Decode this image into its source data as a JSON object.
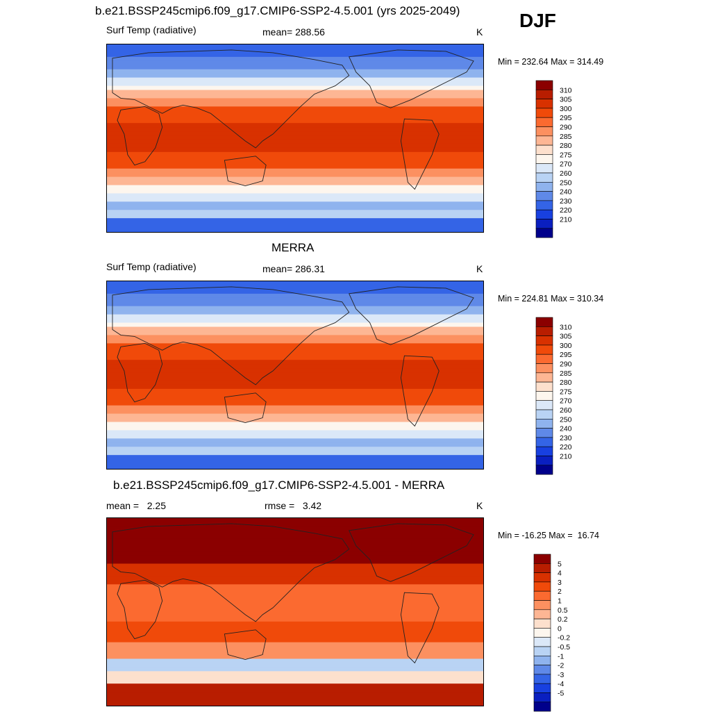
{
  "figure": {
    "season": "DJF"
  },
  "panels": [
    {
      "title": "b.e21.BSSP245cmip6.f09_g17.CMIP6-SSP2-4.5.001 (yrs 2025-2049)",
      "left_label": "Surf Temp (radiative)",
      "center_label": "mean= 288.56",
      "units": "K",
      "minmax": "Min = 232.64 Max = 314.49",
      "colorbar_labels": [
        "310",
        "305",
        "300",
        "295",
        "290",
        "285",
        "280",
        "275",
        "270",
        "260",
        "250",
        "240",
        "230",
        "220",
        "210"
      ],
      "colorbar_colors": [
        "#8b0000",
        "#b81d00",
        "#d83100",
        "#f04a0a",
        "#fb6a30",
        "#fc9060",
        "#fdb694",
        "#fde0cd",
        "#fdf6ee",
        "#dbe8f8",
        "#b9d3f4",
        "#8fb3ee",
        "#5f89e8",
        "#3464e6",
        "#1840e0",
        "#0a1fc0",
        "#00008b"
      ],
      "palette": "temperature"
    },
    {
      "title": "MERRA",
      "left_label": "Surf Temp (radiative)",
      "center_label": "mean= 286.31",
      "units": "K",
      "minmax": "Min = 224.81 Max = 310.34",
      "colorbar_labels": [
        "310",
        "305",
        "300",
        "295",
        "290",
        "285",
        "280",
        "275",
        "270",
        "260",
        "250",
        "240",
        "230",
        "220",
        "210"
      ],
      "colorbar_colors": [
        "#8b0000",
        "#b81d00",
        "#d83100",
        "#f04a0a",
        "#fb6a30",
        "#fc9060",
        "#fdb694",
        "#fde0cd",
        "#fdf6ee",
        "#dbe8f8",
        "#b9d3f4",
        "#8fb3ee",
        "#5f89e8",
        "#3464e6",
        "#1840e0",
        "#0a1fc0",
        "#00008b"
      ],
      "palette": "temperature"
    },
    {
      "title": "b.e21.BSSP245cmip6.f09_g17.CMIP6-SSP2-4.5.001 - MERRA",
      "left_label": "mean =   2.25",
      "center_label": "rmse =   3.42",
      "units": "K",
      "minmax": "Min = -16.25 Max =  16.74",
      "colorbar_labels": [
        "5",
        "4",
        "3",
        "2",
        "1",
        "0.5",
        "0.2",
        "0",
        "-0.2",
        "-0.5",
        "-1",
        "-2",
        "-3",
        "-4",
        "-5"
      ],
      "colorbar_colors": [
        "#8b0000",
        "#b81d00",
        "#d83100",
        "#f04a0a",
        "#fb6a30",
        "#fc9060",
        "#fdb694",
        "#fde0cd",
        "#fdf6ee",
        "#dbe8f8",
        "#b9d3f4",
        "#8fb3ee",
        "#5f89e8",
        "#3464e6",
        "#1840e0",
        "#0a1fc0",
        "#00008b"
      ],
      "palette": "difference"
    }
  ]
}
